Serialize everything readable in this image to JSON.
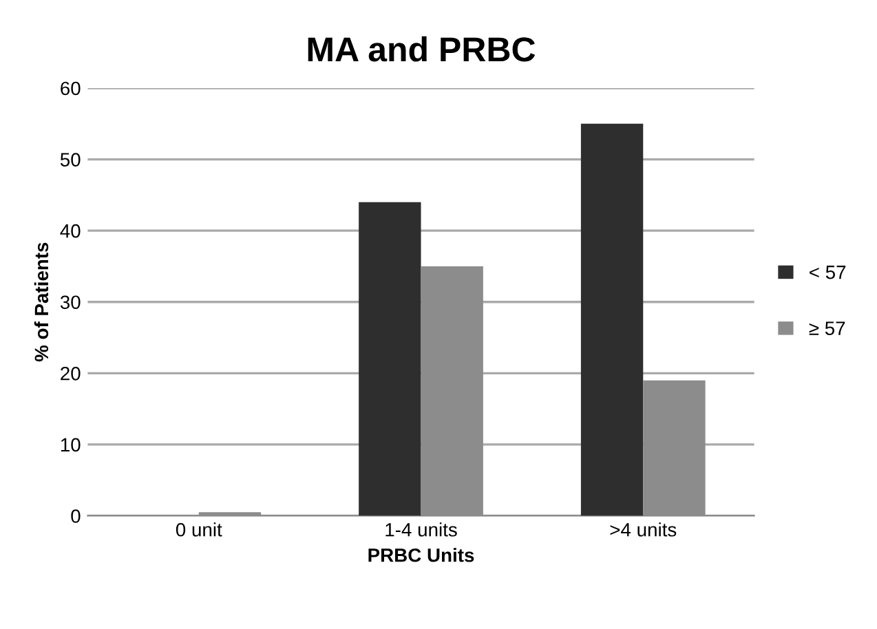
{
  "chart_data": {
    "type": "bar",
    "title": "MA and PRBC",
    "xlabel": "PRBC Units",
    "ylabel": "% of Patients",
    "categories": [
      "0 unit",
      "1-4 units",
      ">4 units"
    ],
    "series": [
      {
        "name": "< 57",
        "color": "#2e2e2e",
        "values": [
          0,
          44,
          55
        ]
      },
      {
        "name": "≥ 57",
        "color": "#8c8c8c",
        "values": [
          0.5,
          35,
          19
        ]
      }
    ],
    "ylim": [
      0,
      60
    ],
    "yticks": [
      0,
      10,
      20,
      30,
      40,
      50,
      60
    ],
    "grid": "y",
    "legend": "right"
  }
}
